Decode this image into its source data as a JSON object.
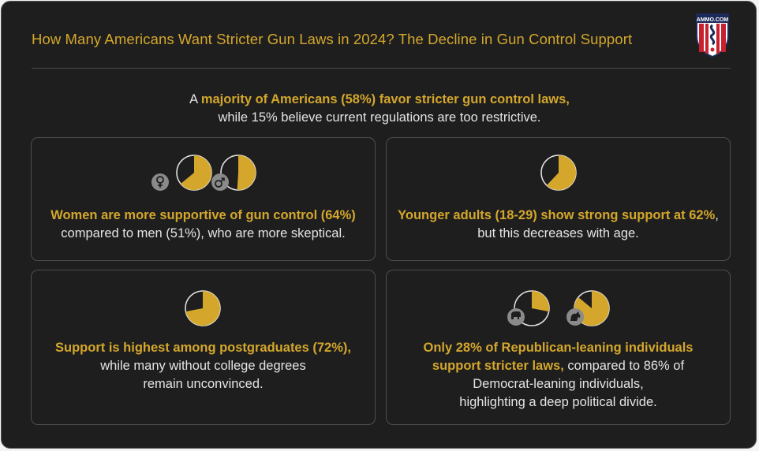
{
  "title": "How Many Americans Want Stricter Gun Laws in 2024? The Decline in Gun Control Support",
  "logo": {
    "text": "AMMO.COM",
    "icon": "ammo-com-shield-logo"
  },
  "intro": {
    "prefix": "A ",
    "highlight": "majority of Americans (58%) favor stricter gun control laws,",
    "line2": "while 15% believe current regulations are too restrictive."
  },
  "colors": {
    "accent": "#d4a72c",
    "background": "#1e1e1e",
    "text": "#e4e4e4",
    "badge": "#8a8a8a"
  },
  "cards": {
    "gender": {
      "highlight": "Women are more supportive of gun control (64%)",
      "line2": "compared to men (51%), who are more skeptical.",
      "pies": [
        {
          "icon": "female-symbol-icon",
          "percent": 64
        },
        {
          "icon": "male-symbol-icon",
          "percent": 51
        }
      ]
    },
    "age": {
      "highlight": "Younger adults (18-29) show strong support at 62%",
      "suffix": ",",
      "line2": "but this decreases with age.",
      "pies": [
        {
          "percent": 62
        }
      ]
    },
    "education": {
      "highlight": "Support is highest among postgraduates (72%),",
      "line2": "while many without college degrees",
      "line3": "remain unconvinced.",
      "pies": [
        {
          "percent": 72
        }
      ]
    },
    "party": {
      "highlight1": "Only 28% of Republican-leaning individuals",
      "highlight2": "support stricter laws,",
      "line2_suffix": " compared to 86% of",
      "line3": "Democrat-leaning individuals,",
      "line4": "highlighting a deep political divide.",
      "pies": [
        {
          "icon": "republican-elephant-icon",
          "percent": 28
        },
        {
          "icon": "democrat-donkey-icon",
          "percent": 86
        }
      ]
    }
  }
}
